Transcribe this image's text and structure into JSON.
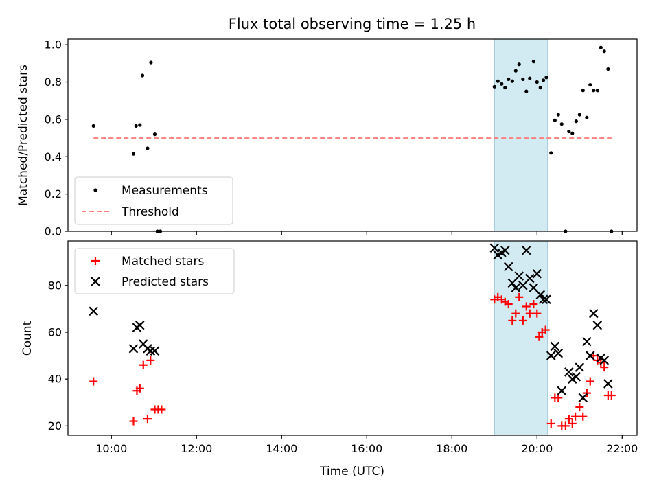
{
  "chart_data": {
    "type": "scatter",
    "title": "Flux total observing time = 1.25 h",
    "xlabel": "Time (UTC)",
    "x_ticks": [
      "10:00",
      "12:00",
      "14:00",
      "16:00",
      "18:00",
      "20:00",
      "22:00"
    ],
    "xlim_hours": [
      8.98,
      22.35
    ],
    "highlight_span_hours": [
      19.0,
      20.25
    ],
    "colors": {
      "measurements": "#000000",
      "threshold": "#ff7f7f",
      "matched": "#ff0000",
      "predicted": "#000000",
      "span": "#add8e6"
    },
    "panels": [
      {
        "ylabel": "Matched/Predicted stars",
        "ylim": [
          0,
          1.03
        ],
        "y_ticks": [
          "0.0",
          "0.2",
          "0.4",
          "0.6",
          "0.8",
          "1.0"
        ],
        "y_tick_values": [
          0,
          0.2,
          0.4,
          0.6,
          0.8,
          1.0
        ],
        "legend": {
          "placement": "lower-left",
          "items": [
            {
              "label": "Measurements",
              "marker": "dot"
            },
            {
              "label": "Threshold",
              "marker": "dashed-line"
            }
          ]
        },
        "threshold": 0.5,
        "series": [
          {
            "name": "Measurements",
            "marker": "dot",
            "points": [
              [
                9.58,
                0.565
              ],
              [
                10.52,
                0.415
              ],
              [
                10.58,
                0.565
              ],
              [
                10.67,
                0.57
              ],
              [
                10.73,
                0.835
              ],
              [
                10.85,
                0.445
              ],
              [
                10.93,
                0.905
              ],
              [
                11.02,
                0.52
              ],
              [
                11.08,
                0.0
              ],
              [
                11.15,
                0.0
              ],
              [
                19.0,
                0.775
              ],
              [
                19.08,
                0.805
              ],
              [
                19.17,
                0.79
              ],
              [
                19.25,
                0.77
              ],
              [
                19.33,
                0.815
              ],
              [
                19.42,
                0.805
              ],
              [
                19.5,
                0.86
              ],
              [
                19.58,
                0.895
              ],
              [
                19.67,
                0.815
              ],
              [
                19.75,
                0.75
              ],
              [
                19.83,
                0.82
              ],
              [
                19.92,
                0.91
              ],
              [
                20.0,
                0.8
              ],
              [
                20.08,
                0.77
              ],
              [
                20.15,
                0.81
              ],
              [
                20.22,
                0.825
              ],
              [
                20.33,
                0.42
              ],
              [
                20.42,
                0.595
              ],
              [
                20.5,
                0.625
              ],
              [
                20.58,
                0.575
              ],
              [
                20.67,
                0.0
              ],
              [
                20.75,
                0.535
              ],
              [
                20.83,
                0.525
              ],
              [
                20.92,
                0.59
              ],
              [
                21.0,
                0.625
              ],
              [
                21.08,
                0.755
              ],
              [
                21.17,
                0.61
              ],
              [
                21.25,
                0.785
              ],
              [
                21.33,
                0.755
              ],
              [
                21.42,
                0.755
              ],
              [
                21.5,
                0.985
              ],
              [
                21.58,
                0.965
              ],
              [
                21.67,
                0.87
              ],
              [
                21.75,
                0.0
              ]
            ]
          }
        ]
      },
      {
        "ylabel": "Count",
        "ylim": [
          16,
          99
        ],
        "y_ticks": [
          "20",
          "40",
          "60",
          "80"
        ],
        "y_tick_values": [
          20,
          40,
          60,
          80
        ],
        "legend": {
          "placement": "upper-left",
          "items": [
            {
              "label": "Matched stars",
              "marker": "plus"
            },
            {
              "label": "Predicted stars",
              "marker": "x"
            }
          ]
        },
        "series": [
          {
            "name": "Matched stars",
            "marker": "plus",
            "points": [
              [
                9.58,
                39
              ],
              [
                10.52,
                22
              ],
              [
                10.6,
                35
              ],
              [
                10.67,
                36
              ],
              [
                10.75,
                46
              ],
              [
                10.85,
                23
              ],
              [
                10.92,
                48
              ],
              [
                11.02,
                27
              ],
              [
                11.1,
                27
              ],
              [
                11.18,
                27
              ],
              [
                19.0,
                74
              ],
              [
                19.08,
                75
              ],
              [
                19.17,
                74
              ],
              [
                19.25,
                73
              ],
              [
                19.33,
                72
              ],
              [
                19.42,
                65
              ],
              [
                19.5,
                68
              ],
              [
                19.58,
                75
              ],
              [
                19.67,
                65
              ],
              [
                19.75,
                71
              ],
              [
                19.83,
                68
              ],
              [
                19.92,
                72
              ],
              [
                20.0,
                68
              ],
              [
                20.05,
                58
              ],
              [
                20.12,
                60
              ],
              [
                20.2,
                61
              ],
              [
                20.33,
                21
              ],
              [
                20.42,
                32
              ],
              [
                20.5,
                32
              ],
              [
                20.58,
                20
              ],
              [
                20.67,
                20
              ],
              [
                20.75,
                23
              ],
              [
                20.83,
                21
              ],
              [
                20.9,
                24
              ],
              [
                21.0,
                28
              ],
              [
                21.08,
                24
              ],
              [
                21.17,
                34
              ],
              [
                21.25,
                39
              ],
              [
                21.33,
                50
              ],
              [
                21.42,
                48
              ],
              [
                21.5,
                47
              ],
              [
                21.58,
                45
              ],
              [
                21.67,
                33
              ],
              [
                21.75,
                33
              ]
            ]
          },
          {
            "name": "Predicted stars",
            "marker": "x",
            "points": [
              [
                9.58,
                69
              ],
              [
                10.52,
                53
              ],
              [
                10.6,
                62
              ],
              [
                10.67,
                63
              ],
              [
                10.75,
                55
              ],
              [
                10.85,
                53
              ],
              [
                10.92,
                52
              ],
              [
                11.02,
                52
              ],
              [
                19.0,
                96
              ],
              [
                19.08,
                93
              ],
              [
                19.17,
                94
              ],
              [
                19.25,
                95
              ],
              [
                19.33,
                88
              ],
              [
                19.42,
                81
              ],
              [
                19.5,
                79
              ],
              [
                19.58,
                84
              ],
              [
                19.67,
                80
              ],
              [
                19.75,
                95
              ],
              [
                19.83,
                83
              ],
              [
                19.92,
                79
              ],
              [
                20.0,
                85
              ],
              [
                20.08,
                76
              ],
              [
                20.15,
                74
              ],
              [
                20.22,
                74
              ],
              [
                20.33,
                50
              ],
              [
                20.42,
                54
              ],
              [
                20.5,
                51
              ],
              [
                20.58,
                35
              ],
              [
                20.75,
                43
              ],
              [
                20.83,
                40
              ],
              [
                20.92,
                41
              ],
              [
                21.0,
                45
              ],
              [
                21.08,
                32
              ],
              [
                21.17,
                56
              ],
              [
                21.25,
                50
              ],
              [
                21.33,
                68
              ],
              [
                21.42,
                63
              ],
              [
                21.5,
                49
              ],
              [
                21.58,
                48
              ],
              [
                21.67,
                38
              ]
            ]
          }
        ]
      }
    ]
  }
}
